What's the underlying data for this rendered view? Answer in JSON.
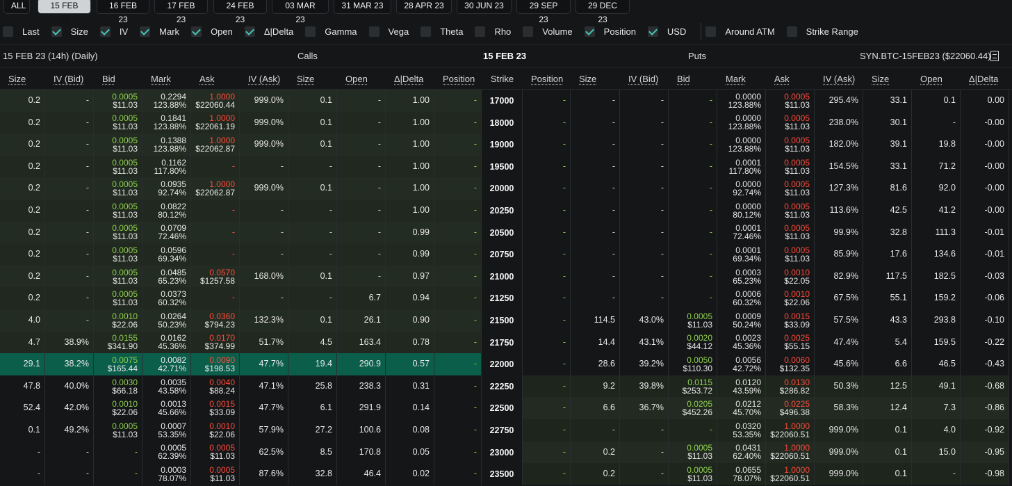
{
  "tabs": [
    {
      "label": "ALL",
      "active": false
    },
    {
      "label": "15 FEB 23",
      "active": true
    },
    {
      "label": "16 FEB 23",
      "active": false
    },
    {
      "label": "17 FEB 23",
      "active": false
    },
    {
      "label": "24 FEB 23",
      "active": false
    },
    {
      "label": "03 MAR 23",
      "active": false
    },
    {
      "label": "31 MAR 23",
      "active": false
    },
    {
      "label": "28 APR 23",
      "active": false
    },
    {
      "label": "30 JUN 23",
      "active": false
    },
    {
      "label": "29 SEP 23",
      "active": false
    },
    {
      "label": "29 DEC 23",
      "active": false
    }
  ],
  "filters": [
    {
      "label": "Last",
      "checked": false
    },
    {
      "label": "Size",
      "checked": true
    },
    {
      "label": "IV",
      "checked": true
    },
    {
      "label": "Mark",
      "checked": true
    },
    {
      "label": "Open",
      "checked": true
    },
    {
      "label": "Δ|Delta",
      "checked": true
    },
    {
      "label": "Gamma",
      "checked": false
    },
    {
      "label": "Vega",
      "checked": false
    },
    {
      "label": "Theta",
      "checked": false
    },
    {
      "label": "Rho",
      "checked": false
    },
    {
      "label": "Volume",
      "checked": false
    },
    {
      "label": "Position",
      "checked": true
    },
    {
      "label": "USD",
      "checked": true
    }
  ],
  "filters_extra": [
    {
      "label": "Around ATM",
      "checked": false
    },
    {
      "label": "Strike Range",
      "checked": false
    }
  ],
  "info": {
    "expiry_desc": "15 FEB 23 (14h) (Daily)",
    "calls": "Calls",
    "date": "15 FEB 23",
    "puts": "Puts",
    "instrument": "SYN.BTC-15FEB23 ($22060.44)"
  },
  "headers": {
    "calls": [
      "Size",
      "IV (Bid)",
      "Bid",
      "Mark",
      "Ask",
      "IV (Ask)",
      "Size",
      "Open",
      "Δ|Delta",
      "Position"
    ],
    "strike": "Strike",
    "puts": [
      "Position",
      "Size",
      "IV (Bid)",
      "Bid",
      "Mark",
      "Ask",
      "IV (Ask)",
      "Size",
      "Open",
      "Δ|Delta"
    ]
  },
  "colors": {
    "itm_call": "#20281f",
    "itm_call_alt": "#232c22",
    "otm": "#141618",
    "itm_put": "#1e251d",
    "atm": "#0b5e4a",
    "bid": "#8fd14f",
    "ask": "#ff4b3a"
  },
  "rows": [
    {
      "strike": "17000",
      "c": [
        "0.2",
        "-",
        [
          "0.0005",
          "$11.03"
        ],
        [
          "0.2294",
          "123.88%"
        ],
        [
          "1.0000",
          "$22060.44"
        ],
        "999.0%",
        "0.1",
        "-",
        "1.00",
        "-"
      ],
      "p": [
        "-",
        "-",
        "-",
        "-",
        [
          "0.0000",
          "123.88%"
        ],
        [
          "0.0005",
          "$11.03"
        ],
        "295.4%",
        "33.1",
        "0.1",
        "0.00"
      ]
    },
    {
      "strike": "18000",
      "c": [
        "0.2",
        "-",
        [
          "0.0005",
          "$11.03"
        ],
        [
          "0.1841",
          "123.88%"
        ],
        [
          "1.0000",
          "$22061.19"
        ],
        "999.0%",
        "0.1",
        "-",
        "1.00",
        "-"
      ],
      "p": [
        "-",
        "-",
        "-",
        "-",
        [
          "0.0000",
          "123.88%"
        ],
        [
          "0.0005",
          "$11.03"
        ],
        "238.0%",
        "30.1",
        "-",
        "-0.00"
      ]
    },
    {
      "strike": "19000",
      "c": [
        "0.2",
        "-",
        [
          "0.0005",
          "$11.03"
        ],
        [
          "0.1388",
          "123.88%"
        ],
        [
          "1.0000",
          "$22062.87"
        ],
        "999.0%",
        "0.1",
        "-",
        "1.00",
        "-"
      ],
      "p": [
        "-",
        "-",
        "-",
        "-",
        [
          "0.0000",
          "123.88%"
        ],
        [
          "0.0005",
          "$11.03"
        ],
        "182.0%",
        "39.1",
        "19.8",
        "-0.00"
      ]
    },
    {
      "strike": "19500",
      "c": [
        "0.2",
        "-",
        [
          "0.0005",
          "$11.03"
        ],
        [
          "0.1162",
          "117.80%"
        ],
        "-",
        "-",
        "-",
        "-",
        "1.00",
        "-"
      ],
      "p": [
        "-",
        "-",
        "-",
        "-",
        [
          "0.0001",
          "117.80%"
        ],
        [
          "0.0005",
          "$11.03"
        ],
        "154.5%",
        "33.1",
        "71.2",
        "-0.00"
      ]
    },
    {
      "strike": "20000",
      "c": [
        "0.2",
        "-",
        [
          "0.0005",
          "$11.03"
        ],
        [
          "0.0935",
          "92.74%"
        ],
        [
          "1.0000",
          "$22062.87"
        ],
        "999.0%",
        "0.1",
        "-",
        "1.00",
        "-"
      ],
      "p": [
        "-",
        "-",
        "-",
        "-",
        [
          "0.0000",
          "92.74%"
        ],
        [
          "0.0005",
          "$11.03"
        ],
        "127.3%",
        "81.6",
        "92.0",
        "-0.00"
      ]
    },
    {
      "strike": "20250",
      "c": [
        "0.2",
        "-",
        [
          "0.0005",
          "$11.03"
        ],
        [
          "0.0822",
          "80.12%"
        ],
        "-",
        "-",
        "-",
        "-",
        "1.00",
        "-"
      ],
      "p": [
        "-",
        "-",
        "-",
        "-",
        [
          "0.0000",
          "80.12%"
        ],
        [
          "0.0005",
          "$11.03"
        ],
        "113.6%",
        "42.5",
        "41.2",
        "-0.00"
      ]
    },
    {
      "strike": "20500",
      "c": [
        "0.2",
        "-",
        [
          "0.0005",
          "$11.03"
        ],
        [
          "0.0709",
          "72.46%"
        ],
        "-",
        "-",
        "-",
        "-",
        "0.99",
        "-"
      ],
      "p": [
        "-",
        "-",
        "-",
        "-",
        [
          "0.0001",
          "72.46%"
        ],
        [
          "0.0005",
          "$11.03"
        ],
        "99.9%",
        "32.8",
        "111.3",
        "-0.01"
      ]
    },
    {
      "strike": "20750",
      "c": [
        "0.2",
        "-",
        [
          "0.0005",
          "$11.03"
        ],
        [
          "0.0596",
          "69.34%"
        ],
        "-",
        "-",
        "-",
        "-",
        "0.99",
        "-"
      ],
      "p": [
        "-",
        "-",
        "-",
        "-",
        [
          "0.0001",
          "69.34%"
        ],
        [
          "0.0005",
          "$11.03"
        ],
        "85.9%",
        "17.6",
        "134.6",
        "-0.01"
      ]
    },
    {
      "strike": "21000",
      "c": [
        "0.2",
        "-",
        [
          "0.0005",
          "$11.03"
        ],
        [
          "0.0485",
          "65.23%"
        ],
        [
          "0.0570",
          "$1257.58"
        ],
        "168.0%",
        "0.1",
        "-",
        "0.97",
        "-"
      ],
      "p": [
        "-",
        "-",
        "-",
        "-",
        [
          "0.0003",
          "65.23%"
        ],
        [
          "0.0010",
          "$22.05"
        ],
        "82.9%",
        "117.5",
        "182.5",
        "-0.03"
      ]
    },
    {
      "strike": "21250",
      "c": [
        "0.2",
        "-",
        [
          "0.0005",
          "$11.03"
        ],
        [
          "0.0373",
          "60.32%"
        ],
        "-",
        "-",
        "-",
        "6.7",
        "0.94",
        "-"
      ],
      "p": [
        "-",
        "-",
        "-",
        "-",
        [
          "0.0006",
          "60.32%"
        ],
        [
          "0.0010",
          "$22.06"
        ],
        "67.5%",
        "55.1",
        "159.2",
        "-0.06"
      ]
    },
    {
      "strike": "21500",
      "c": [
        "4.0",
        "-",
        [
          "0.0010",
          "$22.06"
        ],
        [
          "0.0264",
          "50.23%"
        ],
        [
          "0.0360",
          "$794.23"
        ],
        "132.3%",
        "0.1",
        "26.1",
        "0.90",
        "-"
      ],
      "p": [
        "-",
        "114.5",
        "43.0%",
        [
          "0.0005",
          "$11.03"
        ],
        [
          "0.0009",
          "50.24%"
        ],
        [
          "0.0015",
          "$33.09"
        ],
        "57.5%",
        "43.3",
        "293.8",
        "-0.10"
      ]
    },
    {
      "strike": "21750",
      "c": [
        "4.7",
        "38.9%",
        [
          "0.0155",
          "$341.90"
        ],
        [
          "0.0162",
          "45.36%"
        ],
        [
          "0.0170",
          "$374.99"
        ],
        "51.7%",
        "4.5",
        "163.4",
        "0.78",
        "-"
      ],
      "p": [
        "-",
        "14.4",
        "43.1%",
        [
          "0.0020",
          "$44.12"
        ],
        [
          "0.0023",
          "45.36%"
        ],
        [
          "0.0025",
          "$55.15"
        ],
        "47.4%",
        "5.4",
        "159.5",
        "-0.22"
      ]
    },
    {
      "strike": "22000",
      "c": [
        "29.1",
        "38.2%",
        [
          "0.0075",
          "$165.44"
        ],
        [
          "0.0082",
          "42.71%"
        ],
        [
          "0.0090",
          "$198.53"
        ],
        "47.7%",
        "19.4",
        "290.9",
        "0.57",
        "-"
      ],
      "p": [
        "-",
        "28.6",
        "39.2%",
        [
          "0.0050",
          "$110.30"
        ],
        [
          "0.0056",
          "42.72%"
        ],
        [
          "0.0060",
          "$132.35"
        ],
        "45.6%",
        "6.6",
        "46.5",
        "-0.43"
      ]
    },
    {
      "strike": "22250",
      "c": [
        "47.8",
        "40.0%",
        [
          "0.0030",
          "$66.18"
        ],
        [
          "0.0035",
          "43.58%"
        ],
        [
          "0.0040",
          "$88.24"
        ],
        "47.1%",
        "25.8",
        "238.3",
        "0.31",
        "-"
      ],
      "p": [
        "-",
        "9.2",
        "39.8%",
        [
          "0.0115",
          "$253.72"
        ],
        [
          "0.0120",
          "43.59%"
        ],
        [
          "0.0130",
          "$286.82"
        ],
        "50.3%",
        "12.5",
        "49.1",
        "-0.68"
      ]
    },
    {
      "strike": "22500",
      "c": [
        "52.4",
        "42.0%",
        [
          "0.0010",
          "$22.06"
        ],
        [
          "0.0013",
          "45.66%"
        ],
        [
          "0.0015",
          "$33.09"
        ],
        "47.7%",
        "6.1",
        "291.9",
        "0.14",
        "-"
      ],
      "p": [
        "-",
        "6.6",
        "36.7%",
        [
          "0.0205",
          "$452.26"
        ],
        [
          "0.0212",
          "45.70%"
        ],
        [
          "0.0225",
          "$496.38"
        ],
        "58.3%",
        "12.4",
        "7.3",
        "-0.86"
      ]
    },
    {
      "strike": "22750",
      "c": [
        "0.1",
        "49.2%",
        [
          "0.0005",
          "$11.03"
        ],
        [
          "0.0007",
          "53.35%"
        ],
        [
          "0.0010",
          "$22.06"
        ],
        "57.9%",
        "27.2",
        "100.6",
        "0.08",
        "-"
      ],
      "p": [
        "-",
        "-",
        "-",
        "-",
        [
          "0.0320",
          "53.35%"
        ],
        [
          "1.0000",
          "$22060.51"
        ],
        "999.0%",
        "0.1",
        "4.0",
        "-0.92"
      ]
    },
    {
      "strike": "23000",
      "c": [
        "-",
        "-",
        "-",
        [
          "0.0005",
          "62.39%"
        ],
        [
          "0.0005",
          "$11.03"
        ],
        "62.5%",
        "8.5",
        "170.8",
        "0.05",
        "-"
      ],
      "p": [
        "-",
        "0.2",
        "-",
        [
          "0.0005",
          "$11.03"
        ],
        [
          "0.0431",
          "62.40%"
        ],
        [
          "1.0000",
          "$22060.51"
        ],
        "999.0%",
        "0.1",
        "15.0",
        "-0.95"
      ]
    },
    {
      "strike": "23500",
      "c": [
        "-",
        "-",
        "-",
        [
          "0.0003",
          "78.07%"
        ],
        [
          "0.0005",
          "$11.03"
        ],
        "87.6%",
        "32.8",
        "46.4",
        "0.02",
        "-"
      ],
      "p": [
        "-",
        "0.2",
        "-",
        [
          "0.0005",
          "$11.03"
        ],
        [
          "0.0655",
          "78.07%"
        ],
        [
          "1.0000",
          "$22060.51"
        ],
        "999.0%",
        "0.1",
        "-",
        "-0.98"
      ]
    }
  ]
}
